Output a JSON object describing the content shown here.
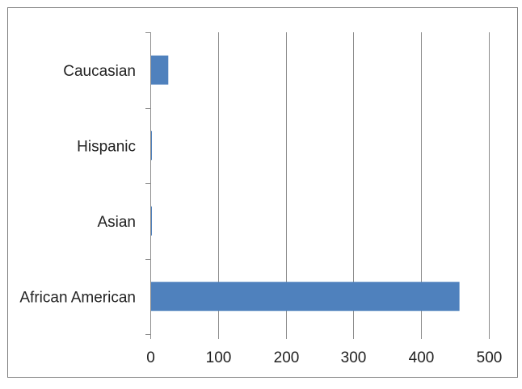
{
  "chart_data": {
    "type": "bar",
    "orientation": "horizontal",
    "categories": [
      "Caucasian",
      "Hispanic",
      "Asian",
      "African American"
    ],
    "values": [
      26,
      1,
      1,
      456
    ],
    "xlim": [
      0,
      500
    ],
    "xticks": [
      0,
      100,
      200,
      300,
      400,
      500
    ],
    "grid": true,
    "bar_color": "#4F81BD",
    "title": "",
    "xlabel": "",
    "ylabel": ""
  }
}
